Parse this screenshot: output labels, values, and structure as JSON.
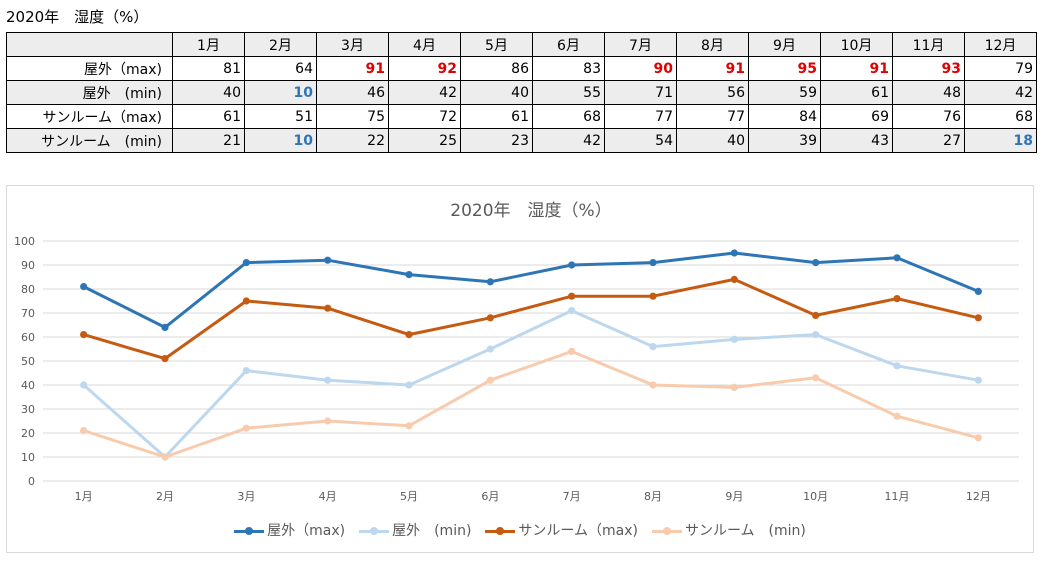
{
  "sheet_title": "2020年　湿度（%）",
  "table": {
    "months": [
      "1月",
      "2月",
      "3月",
      "4月",
      "5月",
      "6月",
      "7月",
      "8月",
      "9月",
      "10月",
      "11月",
      "12月"
    ],
    "rows": [
      {
        "label": "屋外（max)",
        "values": [
          81,
          64,
          91,
          92,
          86,
          83,
          90,
          91,
          95,
          91,
          93,
          79
        ],
        "highlight": [
          false,
          false,
          true,
          true,
          false,
          false,
          true,
          true,
          true,
          true,
          true,
          false
        ],
        "highlight_color": "#e00000",
        "shade": false
      },
      {
        "label": "屋外　(min)",
        "values": [
          40,
          10,
          46,
          42,
          40,
          55,
          71,
          56,
          59,
          61,
          48,
          42
        ],
        "highlight": [
          false,
          true,
          false,
          false,
          false,
          false,
          false,
          false,
          false,
          false,
          false,
          false
        ],
        "highlight_color": "#2e75b6",
        "shade": true
      },
      {
        "label": "サンルーム（max)",
        "values": [
          61,
          51,
          75,
          72,
          61,
          68,
          77,
          77,
          84,
          69,
          76,
          68
        ],
        "highlight": [
          false,
          false,
          false,
          false,
          false,
          false,
          false,
          false,
          false,
          false,
          false,
          false
        ],
        "highlight_color": "",
        "shade": false
      },
      {
        "label": "サンルーム　(min)",
        "values": [
          21,
          10,
          22,
          25,
          23,
          42,
          54,
          40,
          39,
          43,
          27,
          18
        ],
        "highlight": [
          false,
          true,
          false,
          false,
          false,
          false,
          false,
          false,
          false,
          false,
          false,
          true
        ],
        "highlight_color": "#2e75b6",
        "shade": true
      }
    ]
  },
  "chart_data": {
    "type": "line",
    "title": "2020年　湿度（%）",
    "categories": [
      "1月",
      "2月",
      "3月",
      "4月",
      "5月",
      "6月",
      "7月",
      "8月",
      "9月",
      "10月",
      "11月",
      "12月"
    ],
    "series": [
      {
        "name": "屋外（max)",
        "color": "#2e75b6",
        "values": [
          81,
          64,
          91,
          92,
          86,
          83,
          90,
          91,
          95,
          91,
          93,
          79
        ]
      },
      {
        "name": "屋外　(min)",
        "color": "#bdd7ee",
        "values": [
          40,
          10,
          46,
          42,
          40,
          55,
          71,
          56,
          59,
          61,
          48,
          42
        ]
      },
      {
        "name": "サンルーム（max)",
        "color": "#c55a11",
        "values": [
          61,
          51,
          75,
          72,
          61,
          68,
          77,
          77,
          84,
          69,
          76,
          68
        ]
      },
      {
        "name": "サンルーム　(min)",
        "color": "#f8cbad",
        "values": [
          21,
          10,
          22,
          25,
          23,
          42,
          54,
          40,
          39,
          43,
          27,
          18
        ]
      }
    ],
    "ylim": [
      0,
      100
    ],
    "yticks": [
      0,
      10,
      20,
      30,
      40,
      50,
      60,
      70,
      80,
      90,
      100
    ],
    "grid": true,
    "legend": "bottom"
  }
}
